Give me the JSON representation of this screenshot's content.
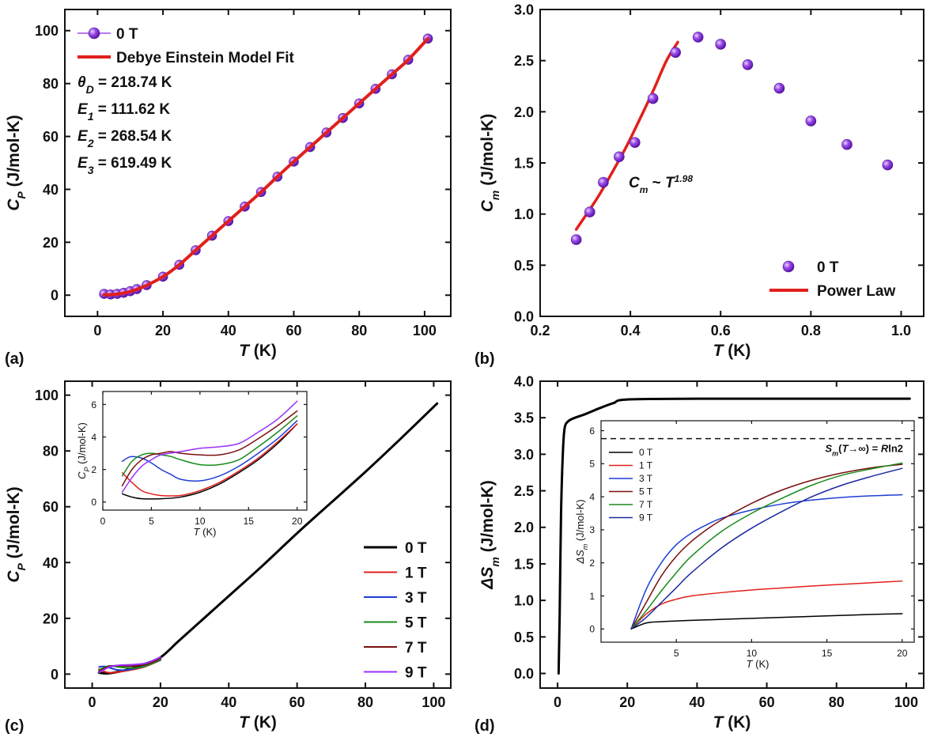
{
  "chart_data": [
    {
      "panel": "(a)",
      "type": "line",
      "xlabel": "T (K)",
      "ylabel": "C_P (J/mol-K)",
      "xlim": [
        -10,
        108
      ],
      "ylim": [
        -8,
        108
      ],
      "xticks": [
        0,
        20,
        40,
        60,
        80,
        100
      ],
      "yticks": [
        0,
        20,
        40,
        60,
        80,
        100
      ],
      "legend_position": "top-left",
      "series": [
        {
          "name": "0 T",
          "style": "markers",
          "color": "#8a2be2",
          "x": [
            2,
            4,
            6,
            8,
            10,
            12,
            15,
            20,
            25,
            30,
            35,
            40,
            45,
            50,
            55,
            60,
            65,
            70,
            75,
            80,
            85,
            90,
            95,
            101
          ],
          "y": [
            0.5,
            0.3,
            0.5,
            0.9,
            1.5,
            2.3,
            3.8,
            7,
            11.5,
            17,
            22.5,
            28,
            33.5,
            39,
            44.8,
            50.5,
            56,
            61.5,
            67,
            72.5,
            78,
            83.5,
            89,
            97
          ]
        },
        {
          "name": "Debye Einstein Model Fit",
          "style": "line",
          "color": "#e0201c",
          "x": [
            2,
            4,
            6,
            8,
            10,
            12,
            15,
            20,
            25,
            30,
            35,
            40,
            45,
            50,
            55,
            60,
            65,
            70,
            75,
            80,
            85,
            90,
            95,
            101
          ],
          "y": [
            0.2,
            0.2,
            0.4,
            0.8,
            1.4,
            2.2,
            3.7,
            7,
            11.5,
            17,
            22.5,
            28,
            33.5,
            39,
            44.8,
            50.5,
            56,
            61.5,
            67,
            72.5,
            78,
            83.5,
            89,
            97
          ]
        }
      ],
      "annotations": [
        "θD = 218.74 K",
        "E1 = 111.62 K",
        "E2 = 268.54 K",
        "E3 = 619.49 K"
      ]
    },
    {
      "panel": "(b)",
      "type": "scatter",
      "xlabel": "T (K)",
      "ylabel": "C_m (J/mol-K)",
      "xlim": [
        0.2,
        1.05
      ],
      "ylim": [
        0,
        3.0
      ],
      "xticks": [
        0.2,
        0.4,
        0.6,
        0.8,
        1.0
      ],
      "yticks": [
        0.0,
        0.5,
        1.0,
        1.5,
        2.0,
        2.5,
        3.0
      ],
      "legend_position": "bottom-right",
      "series": [
        {
          "name": "0 T",
          "style": "markers",
          "color": "#8a2be2",
          "x": [
            0.28,
            0.31,
            0.34,
            0.375,
            0.41,
            0.45,
            0.5,
            0.55,
            0.6,
            0.66,
            0.73,
            0.8,
            0.88,
            0.97
          ],
          "y": [
            0.75,
            1.02,
            1.31,
            1.56,
            1.7,
            2.13,
            2.58,
            2.73,
            2.66,
            2.46,
            2.23,
            1.91,
            1.68,
            1.48
          ]
        },
        {
          "name": "Power Law",
          "style": "line",
          "color": "#e0201c",
          "x": [
            0.28,
            0.3,
            0.33,
            0.36,
            0.39,
            0.42,
            0.45,
            0.48,
            0.505
          ],
          "y": [
            0.85,
            0.98,
            1.18,
            1.41,
            1.65,
            1.92,
            2.2,
            2.5,
            2.68
          ]
        }
      ],
      "annotations": [
        "C_m ~ T^1.98"
      ]
    },
    {
      "panel": "(c)",
      "type": "line",
      "xlabel": "T (K)",
      "ylabel": "C_P (J/mol-K)",
      "xlim": [
        -8,
        105
      ],
      "ylim": [
        -5,
        105
      ],
      "xticks": [
        0,
        20,
        40,
        60,
        80,
        100
      ],
      "yticks": [
        0,
        20,
        40,
        60,
        80,
        100
      ],
      "legend_position": "bottom-right",
      "series": [
        {
          "name": "0 T",
          "color": "#000000",
          "x": [
            2,
            5,
            10,
            15,
            20,
            25,
            30,
            40,
            50,
            60,
            70,
            80,
            90,
            101
          ],
          "y": [
            0.5,
            0.3,
            1.5,
            3.5,
            6,
            11.5,
            17,
            28,
            39,
            50.5,
            61.5,
            72.5,
            84,
            97
          ]
        },
        {
          "name": "1 T",
          "color": "#e0201c",
          "x": [
            2,
            5,
            10,
            15,
            20
          ],
          "y": [
            1.8,
            0.5,
            1.2,
            2.5,
            5
          ]
        },
        {
          "name": "3 T",
          "color": "#1f3fd6",
          "x": [
            2,
            4,
            7,
            10,
            15,
            20
          ],
          "y": [
            2.6,
            2.7,
            1.6,
            1.5,
            2.8,
            5
          ]
        },
        {
          "name": "5 T",
          "color": "#1a8a1a",
          "x": [
            2,
            5,
            8,
            12,
            16,
            20
          ],
          "y": [
            1.5,
            2.9,
            2.5,
            2.2,
            3.0,
            5.3
          ]
        },
        {
          "name": "7 T",
          "color": "#7a1010",
          "x": [
            2,
            5,
            8,
            12,
            16,
            20
          ],
          "y": [
            1.0,
            2.8,
            3.0,
            2.9,
            3.6,
            5.6
          ]
        },
        {
          "name": "9 T",
          "color": "#9b30ff",
          "x": [
            2,
            5,
            8,
            12,
            16,
            20
          ],
          "y": [
            0.6,
            2.5,
            3.2,
            3.4,
            4.0,
            6.1
          ]
        }
      ],
      "inset": {
        "xlabel": "T (K)",
        "ylabel": "C_P (J/mol-K)",
        "xlim": [
          0,
          21
        ],
        "ylim": [
          -0.5,
          6.8
        ],
        "xticks": [
          0,
          5,
          10,
          15,
          20
        ],
        "yticks": [
          0,
          2,
          4,
          6
        ],
        "series": [
          {
            "name": "0 T",
            "color": "#000000",
            "x": [
              2,
              3,
              4,
              6,
              8,
              10,
              12,
              14,
              16,
              18,
              20
            ],
            "y": [
              0.5,
              0.3,
              0.2,
              0.2,
              0.3,
              0.6,
              1.1,
              1.8,
              2.6,
              3.6,
              4.8
            ]
          },
          {
            "name": "1 T",
            "color": "#e0201c",
            "x": [
              2,
              3,
              4,
              5,
              6,
              8,
              10,
              12,
              14,
              16,
              18,
              20
            ],
            "y": [
              1.8,
              1.2,
              0.7,
              0.5,
              0.4,
              0.4,
              0.7,
              1.2,
              1.9,
              2.7,
              3.7,
              4.8
            ]
          },
          {
            "name": "3 T",
            "color": "#1f3fd6",
            "x": [
              2,
              2.5,
              3,
              4,
              5,
              6,
              7,
              8,
              10,
              12,
              14,
              16,
              18,
              20
            ],
            "y": [
              2.5,
              2.7,
              2.8,
              2.7,
              2.4,
              2.0,
              1.7,
              1.4,
              1.3,
              1.6,
              2.2,
              3.0,
              3.9,
              5.0
            ]
          },
          {
            "name": "5 T",
            "color": "#1a8a1a",
            "x": [
              2,
              3,
              4,
              5,
              6,
              7,
              8,
              10,
              12,
              14,
              16,
              18,
              20
            ],
            "y": [
              1.6,
              2.5,
              2.9,
              3.0,
              2.9,
              2.8,
              2.6,
              2.3,
              2.3,
              2.6,
              3.4,
              4.3,
              5.3
            ]
          },
          {
            "name": "7 T",
            "color": "#7a1010",
            "x": [
              2,
              3,
              4,
              5,
              6,
              7,
              8,
              10,
              12,
              14,
              16,
              18,
              20
            ],
            "y": [
              1.0,
              2.0,
              2.6,
              2.9,
              3.0,
              3.1,
              3.0,
              2.9,
              2.9,
              3.2,
              3.9,
              4.7,
              5.6
            ]
          },
          {
            "name": "9 T",
            "color": "#9b30ff",
            "x": [
              2,
              3,
              4,
              5,
              6,
              8,
              10,
              12,
              14,
              16,
              18,
              20
            ],
            "y": [
              0.6,
              1.5,
              2.2,
              2.6,
              2.9,
              3.1,
              3.3,
              3.4,
              3.6,
              4.3,
              5.1,
              6.2
            ]
          }
        ]
      }
    },
    {
      "panel": "(d)",
      "type": "line",
      "xlabel": "T (K)",
      "ylabel": "ΔS_m (J/mol-K)",
      "xlim": [
        -5,
        105
      ],
      "ylim": [
        -0.2,
        4.0
      ],
      "xticks": [
        0,
        20,
        40,
        60,
        80,
        100
      ],
      "yticks": [
        0.0,
        0.5,
        1.0,
        1.5,
        2.0,
        2.5,
        3.0,
        3.5,
        4.0
      ],
      "series": [
        {
          "name": "0 T",
          "color": "#000000",
          "x": [
            0.3,
            0.6,
            1.0,
            1.5,
            2,
            3,
            5,
            8,
            12,
            16,
            20,
            40,
            60,
            80,
            101
          ],
          "y": [
            0.0,
            0.8,
            2.2,
            3.0,
            3.35,
            3.45,
            3.5,
            3.55,
            3.63,
            3.7,
            3.75,
            3.76,
            3.76,
            3.76,
            3.76
          ]
        }
      ],
      "inset": {
        "xlabel": "T (K)",
        "ylabel": "ΔS_m (J/mol-K)",
        "xlim": [
          0,
          20.8
        ],
        "ylim": [
          -0.4,
          6.3
        ],
        "xticks": [
          5,
          10,
          15,
          20
        ],
        "yticks": [
          0,
          1,
          2,
          3,
          4,
          5,
          6
        ],
        "reference_line": {
          "y": 5.76,
          "label": "S_m(T→∞) = Rln2",
          "style": "dashed"
        },
        "series": [
          {
            "name": "0 T",
            "color": "#000000",
            "x": [
              2,
              3,
              4,
              6,
              8,
              10,
              12,
              14,
              16,
              18,
              20
            ],
            "y": [
              0,
              0.18,
              0.22,
              0.26,
              0.29,
              0.32,
              0.35,
              0.38,
              0.41,
              0.44,
              0.46
            ]
          },
          {
            "name": "1 T",
            "color": "#e0201c",
            "x": [
              2,
              3,
              4,
              5,
              6,
              8,
              10,
              12,
              14,
              16,
              18,
              20
            ],
            "y": [
              0,
              0.45,
              0.75,
              0.9,
              1.0,
              1.1,
              1.18,
              1.24,
              1.3,
              1.35,
              1.4,
              1.45
            ]
          },
          {
            "name": "3 T",
            "color": "#1f3fd6",
            "x": [
              2,
              3,
              4,
              5,
              6,
              7,
              8,
              10,
              12,
              14,
              16,
              18,
              20
            ],
            "y": [
              0,
              1.2,
              2.0,
              2.55,
              2.9,
              3.15,
              3.35,
              3.6,
              3.78,
              3.9,
              3.98,
              4.03,
              4.06
            ]
          },
          {
            "name": "5 T",
            "color": "#7a1010",
            "x": [
              2,
              3,
              4,
              5,
              6,
              7,
              8,
              10,
              12,
              14,
              16,
              18,
              20
            ],
            "y": [
              0,
              0.8,
              1.6,
              2.2,
              2.65,
              3.0,
              3.3,
              3.8,
              4.2,
              4.5,
              4.72,
              4.88,
              4.98
            ]
          },
          {
            "name": "7 T",
            "color": "#1a8a1a",
            "x": [
              2,
              3,
              4,
              5,
              6,
              8,
              10,
              12,
              14,
              16,
              18,
              20
            ],
            "y": [
              0,
              0.55,
              1.15,
              1.7,
              2.2,
              2.95,
              3.5,
              3.95,
              4.35,
              4.65,
              4.85,
              5.02
            ]
          },
          {
            "name": "9 T",
            "color": "#1a2a9e",
            "x": [
              2,
              3,
              4,
              5,
              6,
              8,
              10,
              12,
              14,
              16,
              18,
              20
            ],
            "y": [
              0,
              0.35,
              0.8,
              1.25,
              1.7,
              2.45,
              3.05,
              3.55,
              4.0,
              4.35,
              4.62,
              4.86
            ]
          }
        ]
      }
    }
  ]
}
